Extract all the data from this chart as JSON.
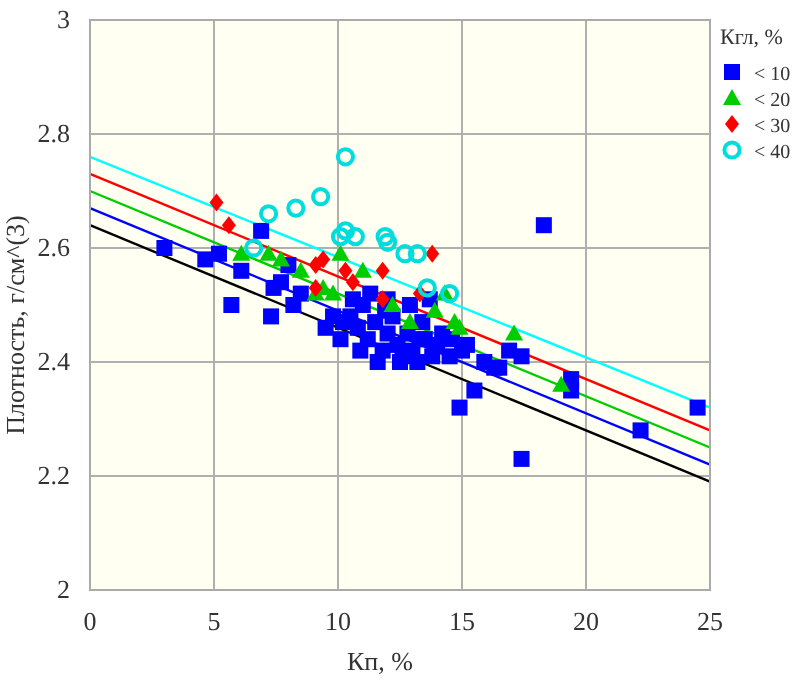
{
  "chart_data": {
    "type": "scatter",
    "xlabel": "Кп, %",
    "ylabel": "Плотность, г/см^(3)",
    "legend_title": "Кгл, %",
    "xlim": [
      0,
      25
    ],
    "xticks": [
      0,
      5,
      10,
      15,
      20,
      25
    ],
    "ylim": [
      2,
      3
    ],
    "yticks": [
      2,
      {
        "value": 2.2,
        "label": "2.2"
      },
      {
        "value": 2.4,
        "label": "2.4"
      },
      {
        "value": 2.6,
        "label": "2.6"
      },
      {
        "value": 2.8,
        "label": "2.8"
      },
      3
    ],
    "grid": true,
    "legend": "right",
    "series": [
      {
        "type": "line",
        "color": "#000000",
        "marker": "none",
        "x": [
          0,
          25
        ],
        "values": [
          2.64,
          2.19
        ]
      },
      {
        "type": "line",
        "color": "#0000ff",
        "marker": "none",
        "x": [
          0,
          25
        ],
        "values": [
          2.67,
          2.22
        ]
      },
      {
        "type": "line",
        "color": "#00cc00",
        "marker": "none",
        "x": [
          0,
          25
        ],
        "values": [
          2.7,
          2.25
        ]
      },
      {
        "type": "line",
        "color": "#ff0000",
        "marker": "none",
        "x": [
          0,
          25
        ],
        "values": [
          2.73,
          2.28
        ]
      },
      {
        "type": "line",
        "color": "#00ffff",
        "marker": "none",
        "x": [
          0,
          25
        ],
        "values": [
          2.76,
          2.32
        ]
      },
      {
        "name": "< 10",
        "color": "#0000ff",
        "marker": "square",
        "x": [
          3,
          4.65,
          5.2,
          6.9,
          6.1,
          5.7,
          7.3,
          7.4,
          7.7,
          8,
          8.2,
          8.5,
          11.6,
          12.5,
          10.1,
          18.3,
          13.7,
          12.8,
          13.3,
          15.2,
          14.5,
          15,
          15.9,
          16.3,
          16.5,
          16.9,
          17.4,
          15.5,
          14.9,
          17.4,
          19.4,
          19.4,
          22.2,
          24.5,
          10.5,
          10.8,
          11,
          11.2,
          11.5,
          11.8,
          12,
          12.2,
          12.4,
          12.6,
          13,
          13.2,
          13.5,
          13.8,
          14,
          11.3,
          12,
          10.2,
          9.8,
          9.5,
          10.9,
          12.9,
          13.4,
          14.2,
          14.6,
          10.6,
          11.9
        ],
        "values": [
          2.6,
          2.58,
          2.59,
          2.63,
          2.56,
          2.5,
          2.48,
          2.53,
          2.54,
          2.57,
          2.5,
          2.52,
          2.4,
          2.4,
          2.44,
          2.64,
          2.51,
          2.45,
          2.44,
          2.43,
          2.41,
          2.42,
          2.4,
          2.39,
          2.39,
          2.42,
          2.41,
          2.35,
          2.32,
          2.23,
          2.37,
          2.35,
          2.28,
          2.32,
          2.48,
          2.46,
          2.5,
          2.44,
          2.47,
          2.42,
          2.45,
          2.48,
          2.43,
          2.41,
          2.42,
          2.4,
          2.44,
          2.41,
          2.43,
          2.52,
          2.51,
          2.47,
          2.48,
          2.46,
          2.42,
          2.5,
          2.47,
          2.45,
          2.44,
          2.51,
          2.49
        ]
      },
      {
        "name": "< 20",
        "color": "#00cc00",
        "marker": "triangle",
        "x": [
          6.1,
          7.2,
          7.7,
          8.5,
          10.1,
          9.4,
          11,
          9.8,
          12.2,
          13.9,
          14.3,
          12.9,
          14.7,
          14.9,
          17.1,
          19,
          9.1
        ],
        "values": [
          2.59,
          2.59,
          2.58,
          2.56,
          2.59,
          2.53,
          2.56,
          2.52,
          2.5,
          2.49,
          2.52,
          2.47,
          2.47,
          2.46,
          2.45,
          2.36,
          2.52
        ]
      },
      {
        "name": "< 30",
        "color": "#ff0000",
        "marker": "diamond",
        "x": [
          5.1,
          5.6,
          9.1,
          9.4,
          9.1,
          10.3,
          11.8,
          10.6,
          11.8,
          13.8,
          13.3
        ],
        "values": [
          2.68,
          2.64,
          2.57,
          2.58,
          2.53,
          2.56,
          2.56,
          2.54,
          2.51,
          2.59,
          2.52
        ]
      },
      {
        "name": "< 40",
        "color": "#00dddd",
        "marker": "circle",
        "x": [
          10.3,
          7.2,
          8.3,
          9.3,
          10.1,
          10.3,
          10.7,
          11.9,
          12,
          12.7,
          13.2,
          6.6,
          13.6,
          14.5
        ],
        "values": [
          2.76,
          2.66,
          2.67,
          2.69,
          2.62,
          2.63,
          2.62,
          2.62,
          2.61,
          2.59,
          2.59,
          2.6,
          2.53,
          2.52
        ]
      }
    ]
  }
}
